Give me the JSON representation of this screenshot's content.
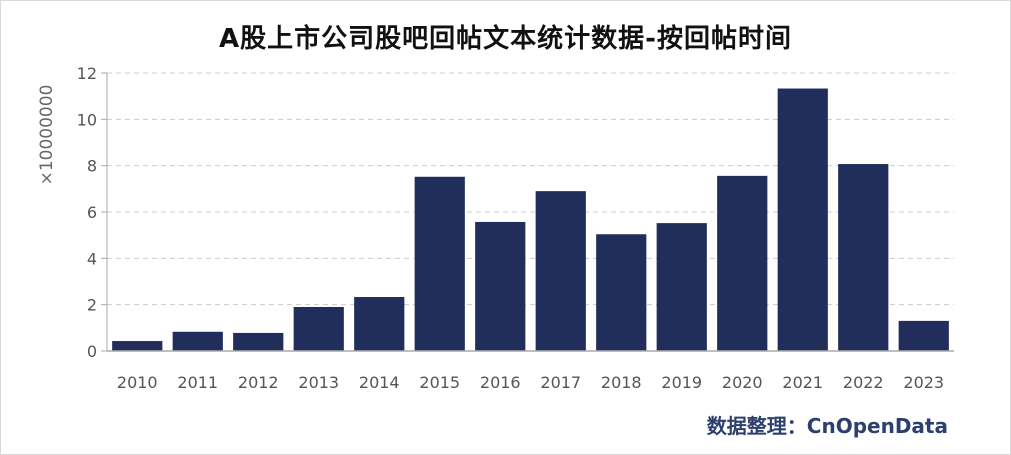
{
  "title": "A股上市公司股吧回帖文本统计数据-按回帖时间",
  "ylabel": "×10000000",
  "credit": "数据整理：CnOpenData",
  "colors": {
    "bar": "#212e5b",
    "grid": "#cccccc",
    "axis": "#aaaaaa",
    "tick": "#555555"
  },
  "chart_data": {
    "type": "bar",
    "title": "A股上市公司股吧回帖文本统计数据-按回帖时间",
    "xlabel": "",
    "ylabel": "×10000000",
    "categories": [
      "2010",
      "2011",
      "2012",
      "2013",
      "2014",
      "2015",
      "2016",
      "2017",
      "2018",
      "2019",
      "2020",
      "2021",
      "2022",
      "2023"
    ],
    "values": [
      0.43,
      0.83,
      0.78,
      1.9,
      2.33,
      7.52,
      5.57,
      6.9,
      5.04,
      5.52,
      7.56,
      11.33,
      8.07,
      1.3
    ],
    "ylim": [
      0,
      12
    ],
    "yticks": [
      0,
      2,
      4,
      6,
      8,
      10,
      12
    ],
    "grid": true,
    "legend": "none"
  }
}
